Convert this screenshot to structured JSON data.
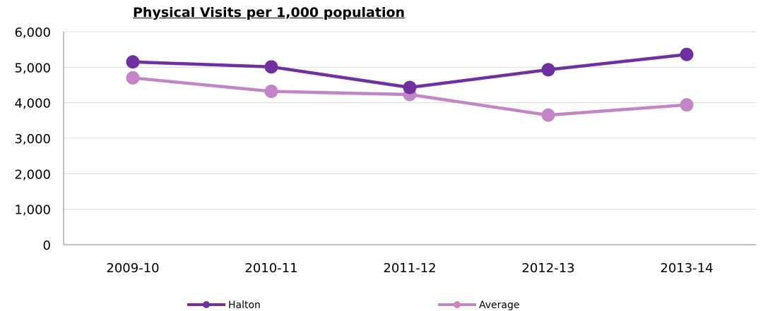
{
  "chart_data": {
    "type": "line",
    "title": "Physical Visits per 1,000 population",
    "xlabel": "",
    "ylabel": "",
    "categories": [
      "2009-10",
      "2010-11",
      "2011-12",
      "2012-13",
      "2013-14"
    ],
    "ylim": [
      0,
      6000
    ],
    "yticks": [
      "0",
      "1,000",
      "2,000",
      "3,000",
      "4,000",
      "5,000",
      "6,000"
    ],
    "grid": true,
    "legend_position": "bottom",
    "series": [
      {
        "name": "Halton",
        "color": "#7030A0",
        "values": [
          5150,
          5010,
          4430,
          4930,
          5360
        ]
      },
      {
        "name": "Average",
        "color": "#C285C8",
        "values": [
          4700,
          4320,
          4230,
          3650,
          3940
        ]
      }
    ]
  }
}
